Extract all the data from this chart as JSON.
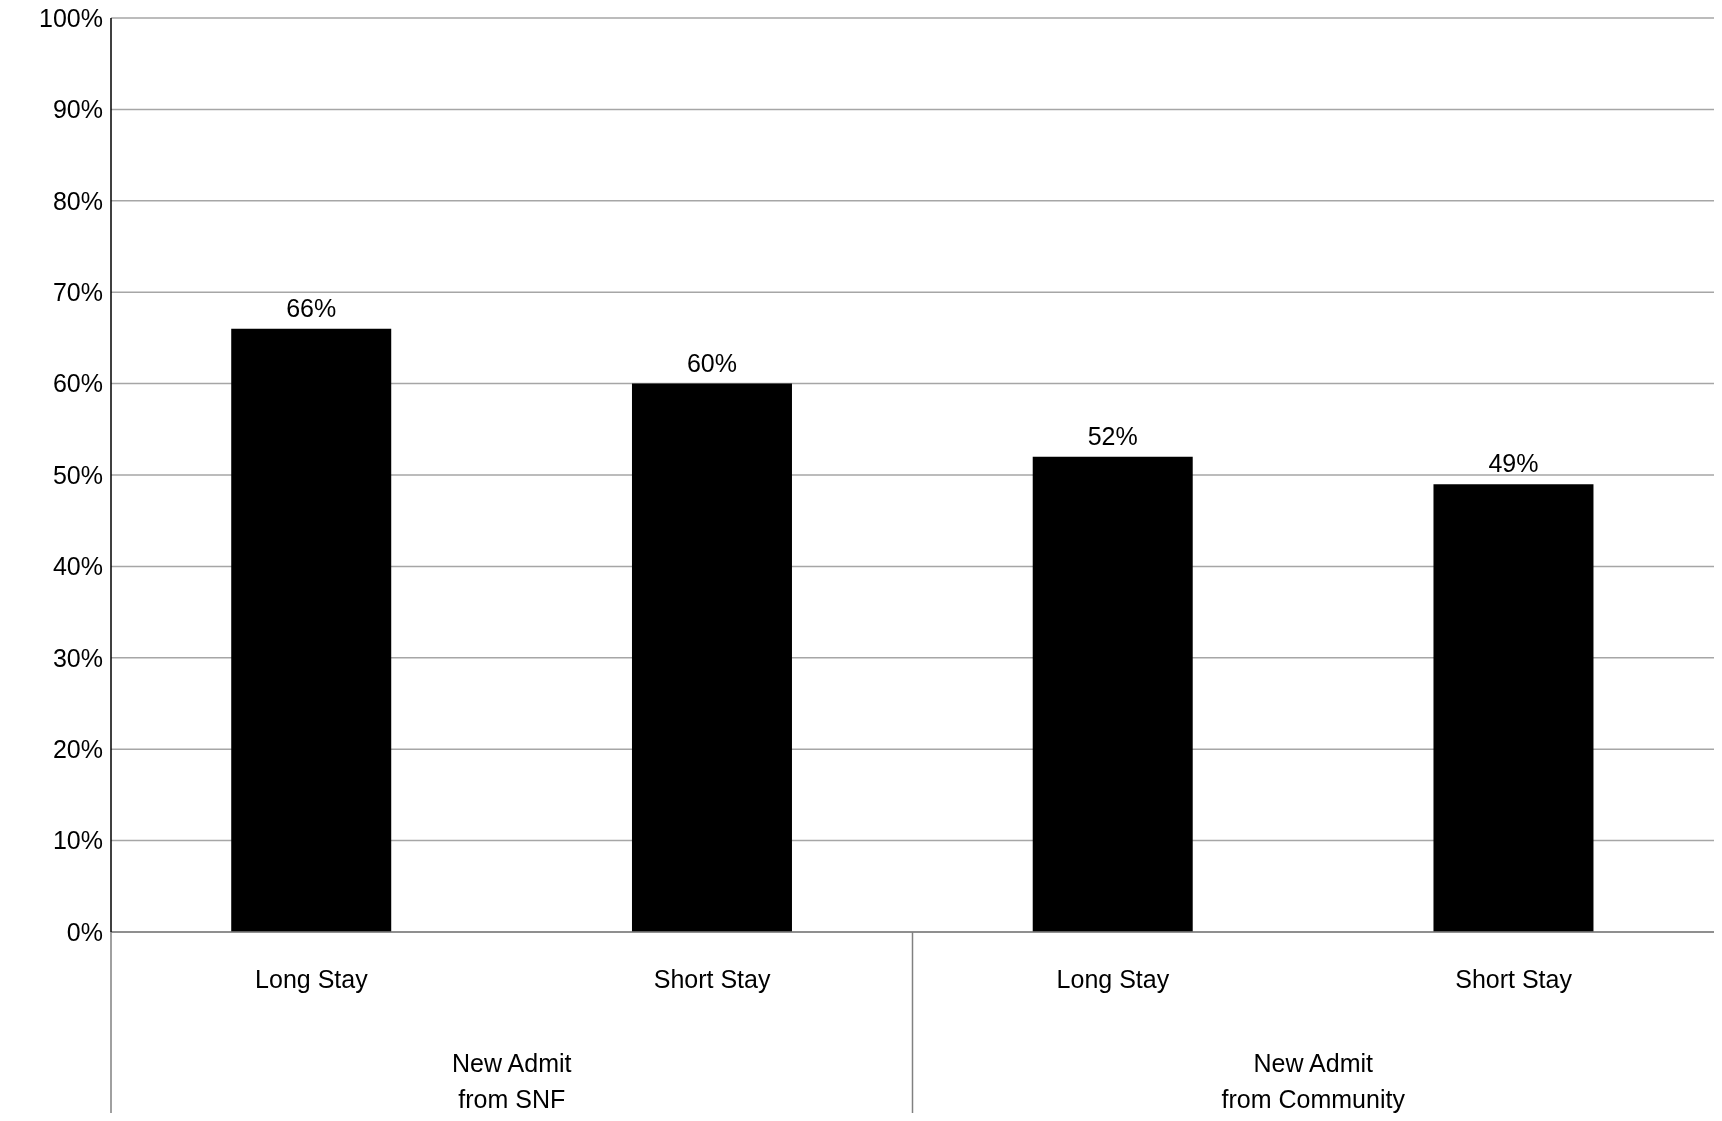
{
  "chart_data": {
    "type": "bar",
    "categories": [
      "Long Stay",
      "Short Stay",
      "Long Stay",
      "Short Stay"
    ],
    "values": [
      66,
      60,
      52,
      49
    ],
    "value_labels": [
      "66%",
      "60%",
      "52%",
      "49%"
    ],
    "color": "#000000",
    "ylim": [
      0,
      100
    ],
    "yticks": [
      {
        "value": 0,
        "label": "0%"
      },
      {
        "value": 10,
        "label": "10%"
      },
      {
        "value": 20,
        "label": "20%"
      },
      {
        "value": 30,
        "label": "30%"
      },
      {
        "value": 40,
        "label": "40%"
      },
      {
        "value": 50,
        "label": "50%"
      },
      {
        "value": 60,
        "label": "60%"
      },
      {
        "value": 70,
        "label": "70%"
      },
      {
        "value": 80,
        "label": "80%"
      },
      {
        "value": 90,
        "label": "90%"
      },
      {
        "value": 100,
        "label": "100%"
      }
    ],
    "annotations": [
      "New Admit\nfrom SNF",
      "New Admit\nfrom Community"
    ],
    "grid": "y"
  }
}
